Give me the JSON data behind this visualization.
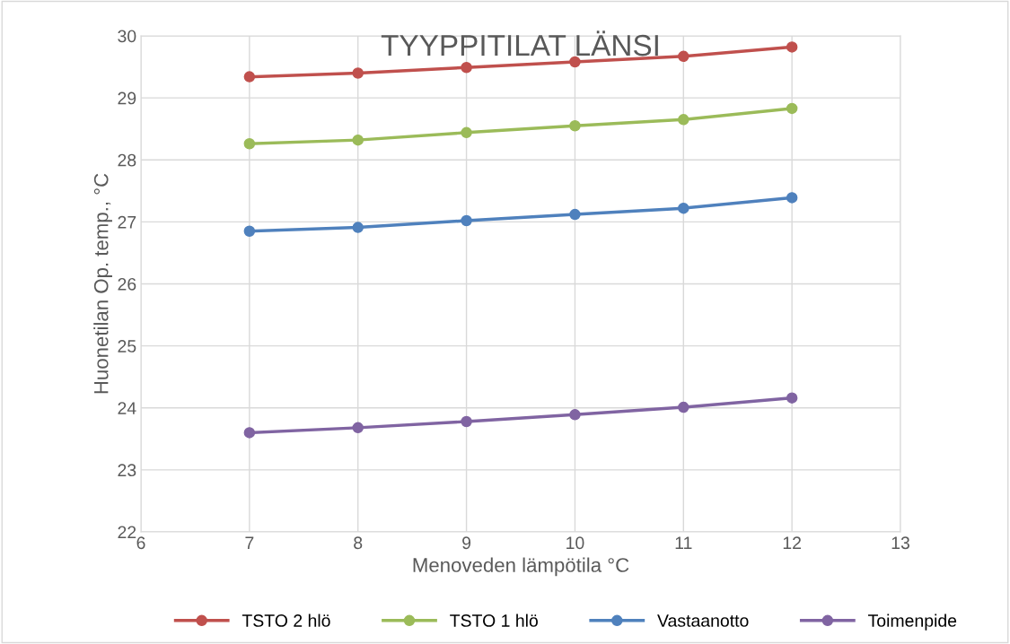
{
  "chart_data": {
    "type": "line",
    "title": "TYYPPITILAT LÄNSI",
    "xlabel": "Menoveden lämpötila °C",
    "ylabel": "Huonetilan Op. temp., °C",
    "x": [
      7,
      8,
      9,
      10,
      11,
      12
    ],
    "series": [
      {
        "name": "TSTO 2 hlö",
        "color": "#c0504d",
        "values": [
          29.34,
          29.4,
          29.49,
          29.58,
          29.67,
          29.82
        ]
      },
      {
        "name": "TSTO 1 hlö",
        "color": "#9bbb59",
        "values": [
          28.26,
          28.32,
          28.44,
          28.55,
          28.65,
          28.83
        ]
      },
      {
        "name": "Vastaanotto",
        "color": "#4f81bd",
        "values": [
          26.85,
          26.91,
          27.02,
          27.12,
          27.22,
          27.39
        ]
      },
      {
        "name": "Toimenpide",
        "color": "#8064a2",
        "values": [
          23.6,
          23.68,
          23.78,
          23.89,
          24.01,
          24.16
        ]
      }
    ],
    "xlim": [
      6,
      13
    ],
    "xticks": [
      6,
      7,
      8,
      9,
      10,
      11,
      12,
      13
    ],
    "ylim": [
      22,
      30
    ],
    "yticks": [
      22,
      23,
      24,
      25,
      26,
      27,
      28,
      29,
      30
    ],
    "grid": true,
    "legend": "bottom",
    "marker": "circle",
    "line_style": "solid"
  }
}
